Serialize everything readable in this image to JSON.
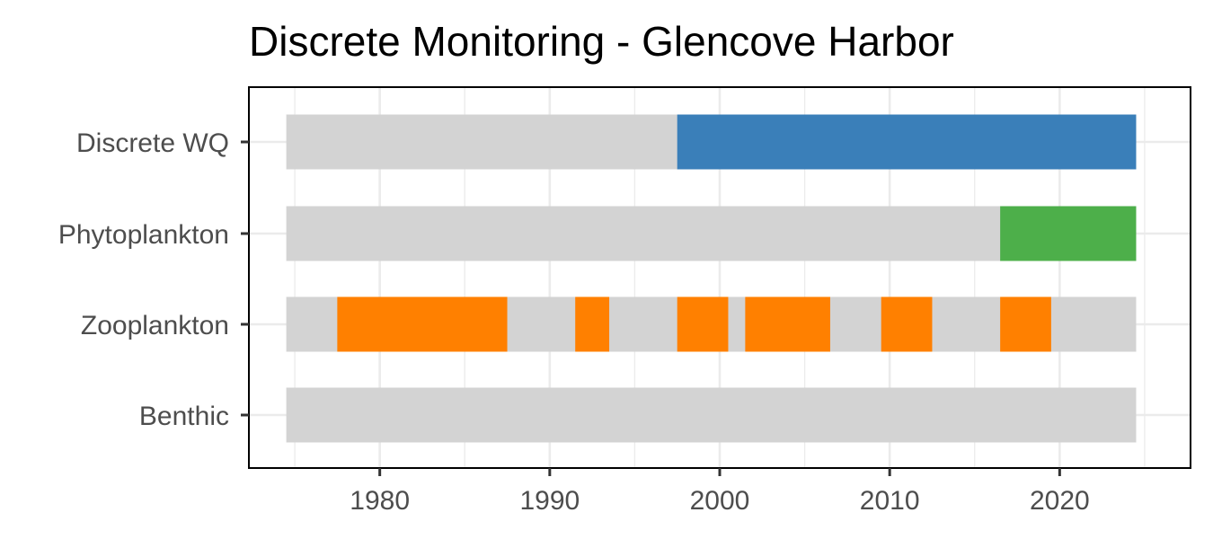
{
  "chart_data": {
    "type": "gantt",
    "title": "Discrete Monitoring - Glencove Harbor",
    "xlabel": "",
    "ylabel": "",
    "xlim": [
      1972.3,
      1997.7
    ],
    "x_ticks": [
      1980,
      1990,
      2000,
      2010,
      2020
    ],
    "grid": true,
    "legend": "none",
    "background_bar_color": "#d3d3d3",
    "background_range": [
      1975,
      2025
    ],
    "categories": [
      "Discrete WQ",
      "Phytoplankton",
      "Zooplankton",
      "Benthic"
    ],
    "series": [
      {
        "category": "Discrete WQ",
        "color": "#3a7fb9",
        "segments": [
          [
            1998,
            2025
          ]
        ]
      },
      {
        "category": "Phytoplankton",
        "color": "#4daf4a",
        "segments": [
          [
            2017,
            2025
          ]
        ]
      },
      {
        "category": "Zooplankton",
        "color": "#ff8000",
        "segments": [
          [
            1978,
            1988
          ],
          [
            1992,
            1994
          ],
          [
            1998,
            2001
          ],
          [
            2002,
            2007
          ],
          [
            2010,
            2013
          ],
          [
            2017,
            2020
          ]
        ]
      },
      {
        "category": "Benthic",
        "color": "#3a7fb9",
        "segments": []
      }
    ]
  }
}
